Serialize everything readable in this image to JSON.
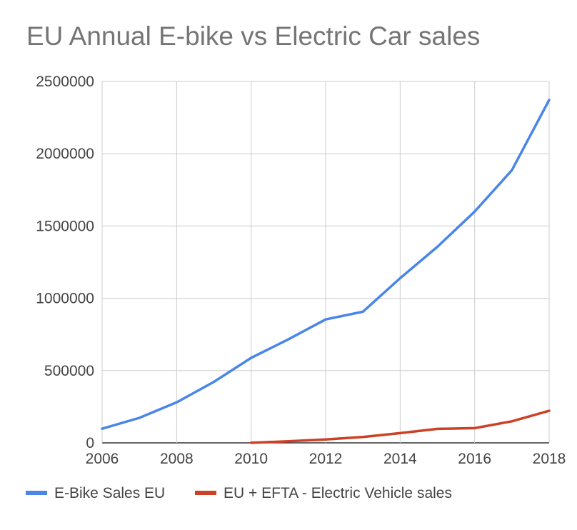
{
  "chart_data": {
    "type": "line",
    "title": "EU Annual E-bike vs Electric Car sales",
    "xlabel": "",
    "ylabel": "",
    "xlim": [
      2006,
      2018
    ],
    "ylim": [
      0,
      2500000
    ],
    "x_ticks": [
      "2006",
      "2008",
      "2010",
      "2012",
      "2014",
      "2016",
      "2018"
    ],
    "y_ticks": [
      "0",
      "500000",
      "1000000",
      "1500000",
      "2000000",
      "2500000"
    ],
    "x_tick_values": [
      2006,
      2008,
      2010,
      2012,
      2014,
      2016,
      2018
    ],
    "y_tick_values": [
      0,
      500000,
      1000000,
      1500000,
      2000000,
      2500000
    ],
    "x_gridlines": [
      2006,
      2008,
      2010,
      2012,
      2014,
      2016,
      2018
    ],
    "legend_position": "bottom-left",
    "series": [
      {
        "name": "E-Bike Sales EU",
        "color": "#4a86e8",
        "x": [
          2006,
          2007,
          2008,
          2009,
          2010,
          2011,
          2012,
          2013,
          2014,
          2015,
          2016,
          2017,
          2018
        ],
        "values": [
          98000,
          173000,
          280000,
          422000,
          588000,
          716000,
          854000,
          907000,
          1139000,
          1356000,
          1600000,
          1886000,
          2372000
        ]
      },
      {
        "name": "EU + EFTA - Electric Vehicle sales",
        "color": "#cc4125",
        "x": [
          2010,
          2011,
          2012,
          2013,
          2014,
          2015,
          2016,
          2017,
          2018
        ],
        "values": [
          700,
          11000,
          23000,
          41000,
          67000,
          97000,
          102000,
          149000,
          222000
        ]
      }
    ]
  }
}
